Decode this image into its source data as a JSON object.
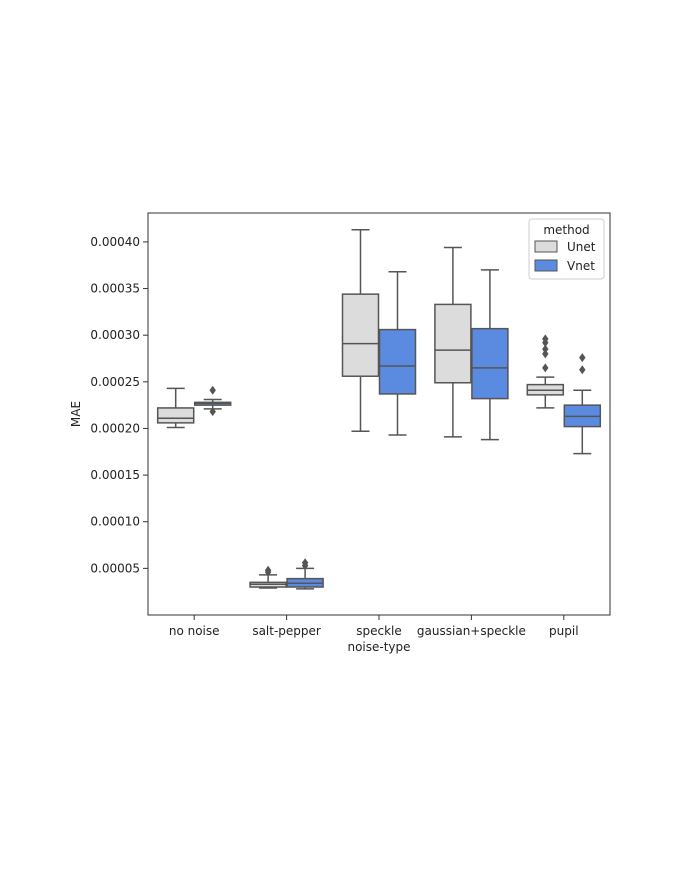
{
  "chart_data": {
    "type": "box",
    "xlabel": "noise-type",
    "ylabel": "MAE",
    "ylim": [
      0.0,
      0.000431
    ],
    "yticks": [
      "0.00005",
      "0.00010",
      "0.00015",
      "0.00020",
      "0.00025",
      "0.00030",
      "0.00035",
      "0.00040"
    ],
    "ytick_values": [
      5e-05,
      0.0001,
      0.00015,
      0.0002,
      0.00025,
      0.0003,
      0.00035,
      0.0004
    ],
    "categories": [
      "no noise",
      "salt-pepper",
      "speckle",
      "gaussian+speckle",
      "pupil"
    ],
    "legend": {
      "title": "method",
      "placement": "top-right"
    },
    "series": [
      {
        "name": "Unet",
        "color": "#dcdcdc",
        "boxes": [
          {
            "whislo": 0.000201,
            "q1": 0.000206,
            "med": 0.000211,
            "q3": 0.000222,
            "whishi": 0.000243,
            "fliers": []
          },
          {
            "whislo": 2.9e-05,
            "q1": 3e-05,
            "med": 3.3e-05,
            "q3": 3.5e-05,
            "whishi": 4.3e-05,
            "fliers": [
              4.6e-05,
              4.8e-05
            ]
          },
          {
            "whislo": 0.000197,
            "q1": 0.000256,
            "med": 0.000291,
            "q3": 0.000344,
            "whishi": 0.000413,
            "fliers": []
          },
          {
            "whislo": 0.000191,
            "q1": 0.000249,
            "med": 0.000284,
            "q3": 0.000333,
            "whishi": 0.000394,
            "fliers": []
          },
          {
            "whislo": 0.000222,
            "q1": 0.000236,
            "med": 0.000241,
            "q3": 0.000247,
            "whishi": 0.000255,
            "fliers": [
              0.000265,
              0.00028,
              0.000285,
              0.000292,
              0.000296
            ]
          }
        ]
      },
      {
        "name": "Vnet",
        "color": "#5b8be0",
        "boxes": [
          {
            "whislo": 0.000221,
            "q1": 0.000225,
            "med": 0.000227,
            "q3": 0.000228,
            "whishi": 0.000231,
            "fliers": [
              0.000218,
              0.000241
            ]
          },
          {
            "whislo": 2.8e-05,
            "q1": 3e-05,
            "med": 3.4e-05,
            "q3": 3.9e-05,
            "whishi": 5e-05,
            "fliers": [
              5.3e-05,
              5.6e-05
            ]
          },
          {
            "whislo": 0.000193,
            "q1": 0.000237,
            "med": 0.000267,
            "q3": 0.000306,
            "whishi": 0.000368,
            "fliers": []
          },
          {
            "whislo": 0.000188,
            "q1": 0.000232,
            "med": 0.000265,
            "q3": 0.000307,
            "whishi": 0.00037,
            "fliers": []
          },
          {
            "whislo": 0.000173,
            "q1": 0.000202,
            "med": 0.000213,
            "q3": 0.000225,
            "whishi": 0.000241,
            "fliers": [
              0.000263,
              0.000276
            ]
          }
        ]
      }
    ],
    "grid": false
  }
}
